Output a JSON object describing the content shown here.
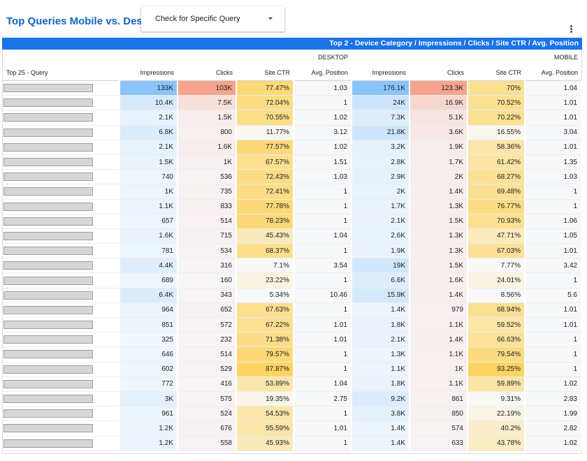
{
  "header": {
    "title": "Top Queries Mobile vs. Desktop",
    "dropdown_label": "Check for Specific Query"
  },
  "table": {
    "banner": "Top 2 - Device Category / Impressions / Clicks / Site CTR / Avg. Position",
    "groups": [
      "DESKTOP",
      "MOBILE"
    ],
    "query_header": "Top 25 - Query",
    "columns": [
      "Impressions",
      "Clicks",
      "Site CTR",
      "Avg. Position",
      "Impressions",
      "Clicks",
      "Site CTR",
      "Avg. Position"
    ],
    "rows": [
      [
        "133K",
        "103K",
        "77.47%",
        "1.03",
        "176.1K",
        "123.3K",
        "70%",
        "1.04"
      ],
      [
        "10.4K",
        "7.5K",
        "72.04%",
        "1",
        "24K",
        "16.9K",
        "70.52%",
        "1.01"
      ],
      [
        "2.1K",
        "1.5K",
        "70.55%",
        "1.02",
        "7.3K",
        "5.1K",
        "70.22%",
        "1.01"
      ],
      [
        "6.8K",
        "800",
        "11.77%",
        "3.12",
        "21.8K",
        "3.6K",
        "16.55%",
        "3.04"
      ],
      [
        "2.1K",
        "1.6K",
        "77.57%",
        "1.02",
        "3.2K",
        "1.9K",
        "58.36%",
        "1.01"
      ],
      [
        "1.5K",
        "1K",
        "67.57%",
        "1.51",
        "2.8K",
        "1.7K",
        "61.42%",
        "1.35"
      ],
      [
        "740",
        "536",
        "72.43%",
        "1.03",
        "2.9K",
        "2K",
        "68.27%",
        "1.03"
      ],
      [
        "1K",
        "735",
        "72.41%",
        "1",
        "2K",
        "1.4K",
        "69.48%",
        "1"
      ],
      [
        "1.1K",
        "833",
        "77.78%",
        "1",
        "1.7K",
        "1.3K",
        "76.77%",
        "1"
      ],
      [
        "657",
        "514",
        "78.23%",
        "1",
        "2.1K",
        "1.5K",
        "70.93%",
        "1.06"
      ],
      [
        "1.6K",
        "715",
        "45.43%",
        "1.04",
        "2.6K",
        "1.3K",
        "47.71%",
        "1.05"
      ],
      [
        "781",
        "534",
        "68.37%",
        "1",
        "1.9K",
        "1.3K",
        "67.03%",
        "1.01"
      ],
      [
        "4.4K",
        "316",
        "7.1%",
        "3.54",
        "19K",
        "1.5K",
        "7.77%",
        "3.42"
      ],
      [
        "689",
        "160",
        "23.22%",
        "1",
        "6.6K",
        "1.6K",
        "24.01%",
        "1"
      ],
      [
        "6.4K",
        "343",
        "5.34%",
        "10.46",
        "15.9K",
        "1.4K",
        "8.56%",
        "5.6"
      ],
      [
        "964",
        "652",
        "67.63%",
        "1",
        "1.4K",
        "979",
        "68.94%",
        "1.01"
      ],
      [
        "851",
        "572",
        "67.22%",
        "1.01",
        "1.8K",
        "1.1K",
        "59.52%",
        "1.01"
      ],
      [
        "325",
        "232",
        "71.38%",
        "1.01",
        "2.1K",
        "1.4K",
        "66.63%",
        "1"
      ],
      [
        "646",
        "514",
        "79.57%",
        "1",
        "1.3K",
        "1.1K",
        "79.54%",
        "1"
      ],
      [
        "602",
        "529",
        "87.87%",
        "1",
        "1.1K",
        "1K",
        "93.25%",
        "1"
      ],
      [
        "772",
        "416",
        "53.89%",
        "1.04",
        "1.8K",
        "1.1K",
        "59.89%",
        "1.02"
      ],
      [
        "3K",
        "575",
        "19.35%",
        "2.75",
        "9.2K",
        "861",
        "9.31%",
        "2.83"
      ],
      [
        "961",
        "524",
        "54.53%",
        "1",
        "3.8K",
        "850",
        "22.19%",
        "1.99"
      ],
      [
        "1.2K",
        "676",
        "55.59%",
        "1.01",
        "1.4K",
        "574",
        "40.2%",
        "2.82"
      ],
      [
        "1.2K",
        "558",
        "45.93%",
        "1",
        "1.4K",
        "633",
        "43.78%",
        "1.02"
      ]
    ]
  },
  "colors": {
    "title": "#1565c0",
    "banner": "#1a73e8",
    "impressions_heat": "#8ac4f8",
    "clicks_heat": "#f4a48c",
    "ctr_heat": "#fdd462",
    "position_base": "#f7f8fa"
  }
}
